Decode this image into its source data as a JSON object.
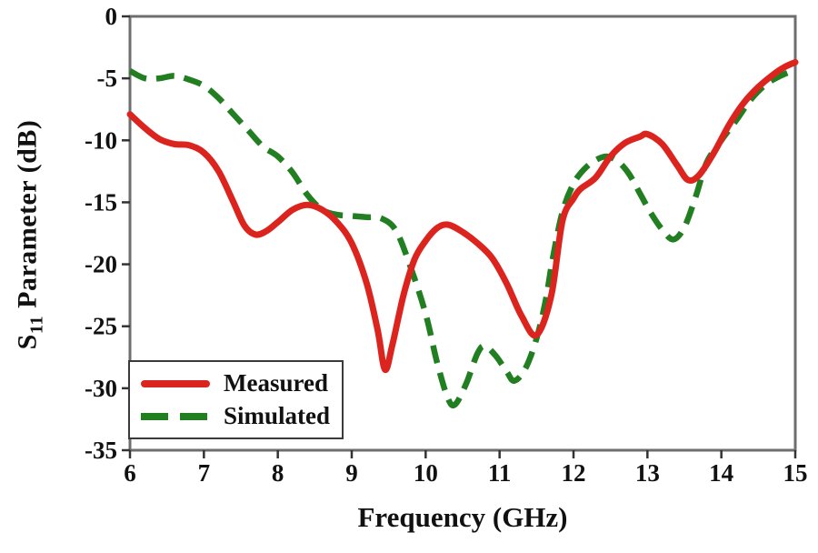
{
  "figure": {
    "background": "#ffffff",
    "frame_color": "#6e6e6e",
    "tick_color": "#333333",
    "text_color": "#111111"
  },
  "chart_data": {
    "type": "line",
    "title": "",
    "xlabel": "Frequency (GHz)",
    "ylabel": "S11 Parameter (dB)",
    "ylabel_parts": {
      "base": "S",
      "sub": "11",
      "rest": " Parameter (dB)"
    },
    "xlim": [
      6,
      15
    ],
    "ylim": [
      -35,
      0
    ],
    "x_ticks": [
      6,
      7,
      8,
      9,
      10,
      11,
      12,
      13,
      14,
      15
    ],
    "y_ticks": [
      0,
      -5,
      -10,
      -15,
      -20,
      -25,
      -30,
      -35
    ],
    "grid": false,
    "legend_position": "lower-left",
    "series": [
      {
        "name": "Measured",
        "color": "#dc241f",
        "style": "solid",
        "width": 7,
        "x": [
          6.0,
          6.2,
          6.4,
          6.6,
          6.8,
          7.0,
          7.2,
          7.4,
          7.55,
          7.7,
          7.85,
          8.0,
          8.2,
          8.4,
          8.6,
          8.8,
          9.0,
          9.2,
          9.35,
          9.45,
          9.55,
          9.7,
          9.85,
          10.0,
          10.15,
          10.3,
          10.5,
          10.7,
          10.9,
          11.1,
          11.3,
          11.5,
          11.7,
          11.85,
          12.0,
          12.1,
          12.3,
          12.5,
          12.7,
          12.9,
          13.0,
          13.2,
          13.4,
          13.55,
          13.7,
          13.9,
          14.1,
          14.3,
          14.5,
          14.7,
          14.85,
          15.0
        ],
        "y": [
          -7.9,
          -9.0,
          -9.9,
          -10.3,
          -10.4,
          -11.0,
          -12.5,
          -15.0,
          -16.9,
          -17.6,
          -17.3,
          -16.6,
          -15.6,
          -15.2,
          -15.6,
          -16.6,
          -18.3,
          -21.5,
          -25.3,
          -28.5,
          -26.5,
          -22.5,
          -19.6,
          -18.1,
          -17.1,
          -16.8,
          -17.4,
          -18.3,
          -19.5,
          -21.6,
          -24.2,
          -25.7,
          -22.5,
          -16.5,
          -14.7,
          -13.9,
          -13.0,
          -11.3,
          -10.2,
          -9.7,
          -9.5,
          -10.3,
          -12.0,
          -13.2,
          -12.8,
          -11.0,
          -8.8,
          -7.0,
          -5.7,
          -4.7,
          -4.1,
          -3.7
        ]
      },
      {
        "name": "Simulated",
        "color": "#217f21",
        "style": "dashed",
        "dash": "20 11",
        "width": 6.5,
        "x": [
          6.0,
          6.2,
          6.4,
          6.6,
          6.8,
          7.0,
          7.2,
          7.4,
          7.6,
          7.8,
          8.0,
          8.2,
          8.4,
          8.6,
          8.8,
          9.0,
          9.2,
          9.4,
          9.6,
          9.8,
          10.0,
          10.15,
          10.3,
          10.4,
          10.55,
          10.7,
          10.8,
          10.95,
          11.1,
          11.2,
          11.35,
          11.5,
          11.62,
          11.72,
          11.85,
          12.0,
          12.15,
          12.3,
          12.45,
          12.6,
          12.75,
          12.9,
          13.05,
          13.2,
          13.35,
          13.5,
          13.65,
          13.8,
          14.0,
          14.2,
          14.4,
          14.6,
          14.8,
          15.0
        ],
        "y": [
          -4.4,
          -5.0,
          -5.0,
          -4.8,
          -5.1,
          -5.6,
          -6.6,
          -7.9,
          -9.2,
          -10.5,
          -11.3,
          -12.6,
          -14.4,
          -15.6,
          -16.0,
          -16.1,
          -16.2,
          -16.3,
          -17.3,
          -20.3,
          -24.0,
          -27.8,
          -30.8,
          -31.3,
          -29.6,
          -27.2,
          -26.6,
          -27.4,
          -28.7,
          -29.4,
          -28.4,
          -26.0,
          -23.0,
          -19.5,
          -15.8,
          -13.5,
          -12.3,
          -11.6,
          -11.3,
          -11.7,
          -12.7,
          -14.3,
          -15.9,
          -17.2,
          -18.0,
          -17.0,
          -14.6,
          -11.8,
          -10.0,
          -8.4,
          -6.7,
          -5.5,
          -4.8,
          -4.3
        ]
      }
    ]
  },
  "legend": {
    "items": [
      {
        "label": "Measured"
      },
      {
        "label": "Simulated"
      }
    ]
  }
}
